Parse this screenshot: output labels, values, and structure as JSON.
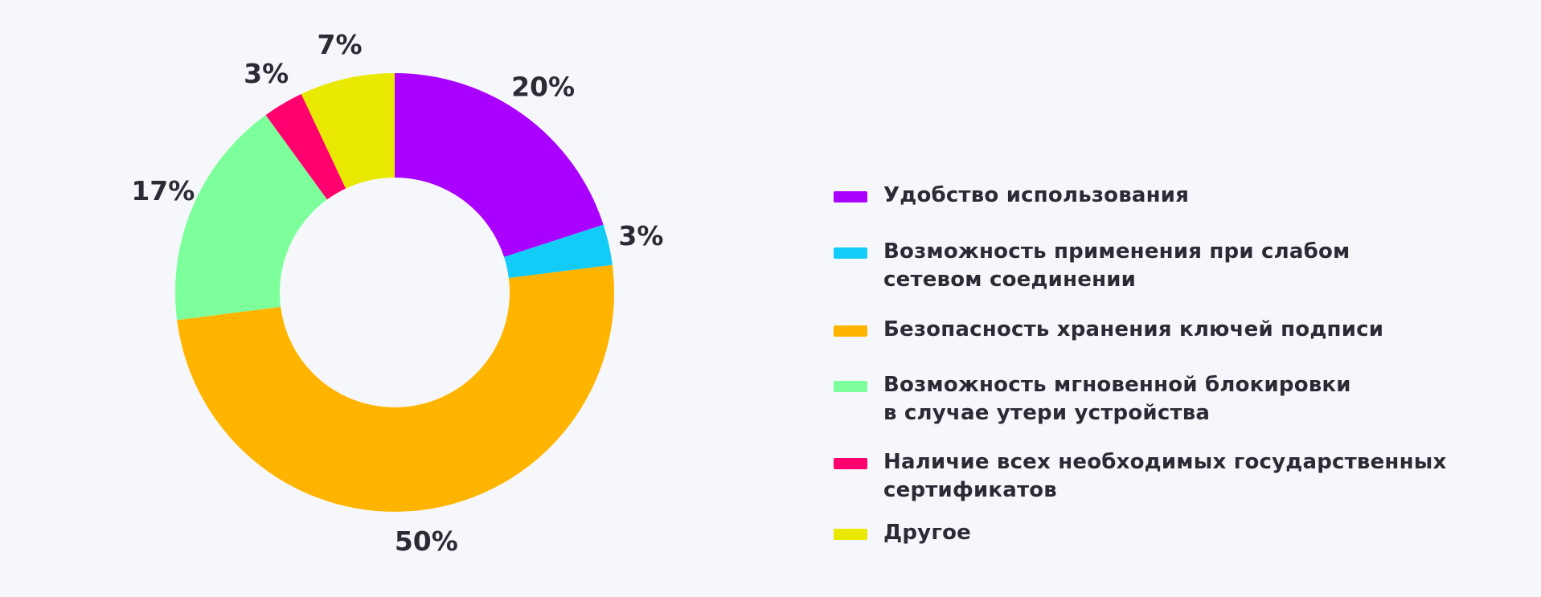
{
  "chart_data": {
    "type": "pie",
    "variant": "donut",
    "slices": [
      {
        "label": "Удобство использования",
        "value": 20,
        "display": "20%",
        "color": "#aa00ff"
      },
      {
        "label": "Возможность применения при слабом\nсетевом соединении",
        "value": 3,
        "display": "3%",
        "color": "#12ccf7"
      },
      {
        "label": "Безопасность хранения ключей подписи",
        "value": 50,
        "display": "50%",
        "color": "#ffb400"
      },
      {
        "label": "Возможность мгновенной блокировки\nв случае утери устройства",
        "value": 17,
        "display": "17%",
        "color": "#7dff9c"
      },
      {
        "label": "Наличие всех необходимых государственных\nсертификатов",
        "value": 3,
        "display": "3%",
        "color": "#ff006e"
      },
      {
        "label": "Другое",
        "value": 7,
        "display": "7%",
        "color": "#e8e800"
      }
    ],
    "start_angle": "top",
    "direction": "clockwise",
    "legend_position": "right"
  }
}
